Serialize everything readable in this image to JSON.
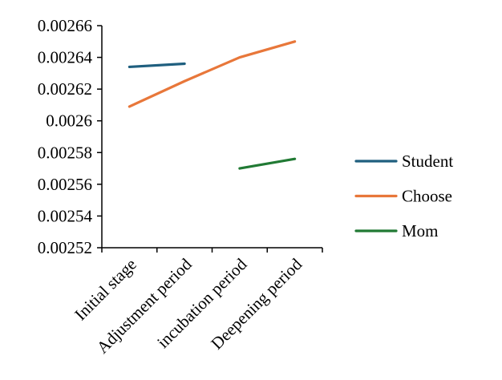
{
  "chart_data": {
    "type": "line",
    "categories": [
      "Initial stage",
      "Adjustment period",
      "incubation period",
      "Deepening period"
    ],
    "ylim": [
      0.00252,
      0.00266
    ],
    "yticks": [
      0.00252,
      0.00254,
      0.00256,
      0.00258,
      0.0026,
      0.00262,
      0.00264,
      0.00266
    ],
    "ytick_labels": [
      "0.00252",
      "0.00254",
      "0.00256",
      "0.00258",
      "0.0026",
      "0.00262",
      "0.00264",
      "0.00266"
    ],
    "grid": false,
    "legend_position": "right",
    "series": [
      {
        "name": "Student",
        "color": "#1f5f7f",
        "values": [
          0.002634,
          0.002636,
          null,
          null
        ]
      },
      {
        "name": "Choose",
        "color": "#e8773a",
        "values": [
          0.002609,
          0.002625,
          0.00264,
          0.00265
        ]
      },
      {
        "name": "Mom",
        "color": "#217a34",
        "values": [
          null,
          null,
          0.00257,
          0.002576
        ]
      }
    ]
  }
}
